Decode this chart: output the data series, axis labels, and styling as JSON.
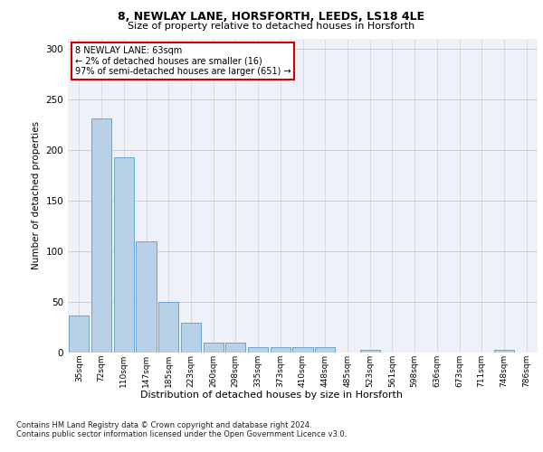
{
  "title1": "8, NEWLAY LANE, HORSFORTH, LEEDS, LS18 4LE",
  "title2": "Size of property relative to detached houses in Horsforth",
  "xlabel": "Distribution of detached houses by size in Horsforth",
  "ylabel": "Number of detached properties",
  "footnote1": "Contains HM Land Registry data © Crown copyright and database right 2024.",
  "footnote2": "Contains public sector information licensed under the Open Government Licence v3.0.",
  "annotation_line1": "8 NEWLAY LANE: 63sqm",
  "annotation_line2": "← 2% of detached houses are smaller (16)",
  "annotation_line3": "97% of semi-detached houses are larger (651) →",
  "bar_color": "#b8d0e8",
  "bar_edge_color": "#5a9dc8",
  "annotation_box_color": "#ffffff",
  "annotation_box_edge": "#cc0000",
  "categories": [
    "35sqm",
    "72sqm",
    "110sqm",
    "147sqm",
    "185sqm",
    "223sqm",
    "260sqm",
    "298sqm",
    "335sqm",
    "373sqm",
    "410sqm",
    "448sqm",
    "485sqm",
    "523sqm",
    "561sqm",
    "598sqm",
    "636sqm",
    "673sqm",
    "711sqm",
    "748sqm",
    "786sqm"
  ],
  "values": [
    37,
    231,
    193,
    110,
    50,
    29,
    10,
    10,
    5,
    5,
    5,
    5,
    0,
    3,
    0,
    0,
    0,
    0,
    0,
    3,
    0
  ],
  "ylim": [
    0,
    310
  ],
  "yticks": [
    0,
    50,
    100,
    150,
    200,
    250,
    300
  ],
  "bg_color": "#eef2f8"
}
